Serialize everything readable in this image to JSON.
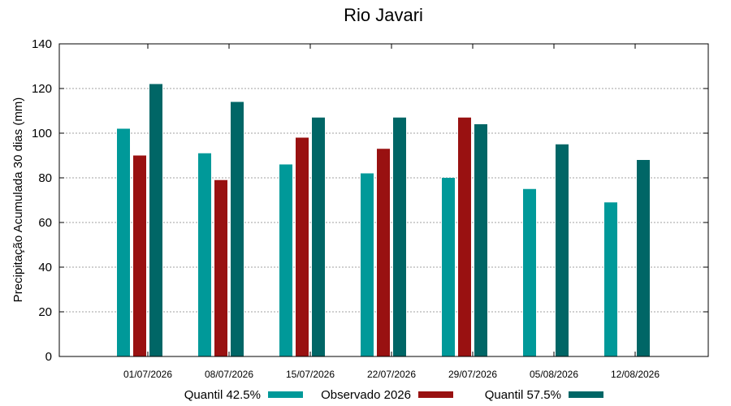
{
  "chart_data": {
    "type": "bar",
    "title": "Rio Javari",
    "xlabel": "",
    "ylabel": "Precipitação Acumulada 30 dias (mm)",
    "ylim": [
      0,
      140
    ],
    "yticks": [
      "0",
      "20",
      "40",
      "60",
      "80",
      "100",
      "120",
      "140"
    ],
    "grid": true,
    "legend_position": "bottom",
    "categories": [
      "01/07/2026",
      "08/07/2026",
      "15/07/2026",
      "22/07/2026",
      "29/07/2026",
      "05/08/2026",
      "12/08/2026"
    ],
    "series": [
      {
        "name": "Quantil 42.5%",
        "color": "#009999",
        "values": [
          102,
          91,
          86,
          82,
          80,
          75,
          69
        ]
      },
      {
        "name": "Observado 2026",
        "color": "#991111",
        "values": [
          90,
          79,
          98,
          93,
          107,
          null,
          null
        ]
      },
      {
        "name": "Quantil 57.5%",
        "color": "#006666",
        "values": [
          122,
          114,
          107,
          107,
          104,
          95,
          88
        ]
      }
    ]
  }
}
